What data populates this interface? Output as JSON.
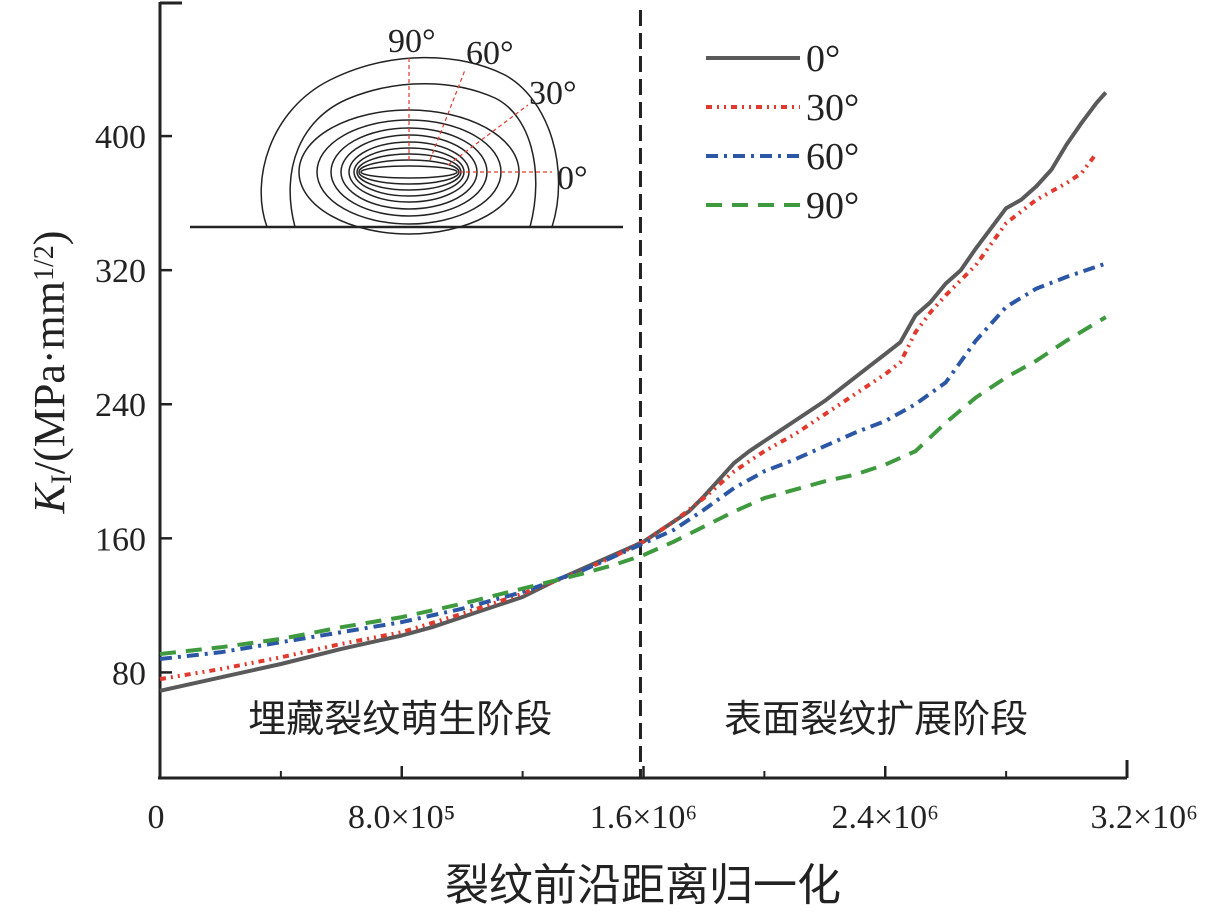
{
  "chart_data": {
    "type": "line",
    "xlabel": "裂纹前沿距离归一化",
    "ylabel_main": "K",
    "ylabel_sub": "I",
    "ylabel_rest": "/(MPa·mm",
    "ylabel_sup": "1/2",
    "ylabel_close": ")",
    "xlim": [
      0,
      3200000
    ],
    "ylim": [
      17,
      480
    ],
    "x_ticks": [
      {
        "value": 0,
        "label": "0"
      },
      {
        "value": 800000,
        "label": "8.0×10⁵"
      },
      {
        "value": 1600000,
        "label": "1.6×10⁶"
      },
      {
        "value": 2400000,
        "label": "2.4×10⁶"
      },
      {
        "value": 3200000,
        "label": "3.2×10⁶"
      }
    ],
    "x_minor_ticks": [
      400000,
      1200000,
      2000000,
      2800000
    ],
    "y_ticks": [
      {
        "value": 80,
        "label": "80"
      },
      {
        "value": 160,
        "label": "160"
      },
      {
        "value": 240,
        "label": "240"
      },
      {
        "value": 320,
        "label": "320"
      },
      {
        "value": 400,
        "label": "400"
      }
    ],
    "divider_x": 1590000,
    "regions": [
      {
        "label": "埋藏裂纹萌生阶段",
        "x": 795000,
        "y": 50
      },
      {
        "label": "表面裂纹扩展阶段",
        "x": 2370000,
        "y": 50
      }
    ],
    "legend_position": "top-right",
    "series": [
      {
        "name": "0°",
        "color": "#5a5a5a",
        "dash": "solid",
        "x": [
          0,
          200000,
          400000,
          600000,
          800000,
          900000,
          1000000,
          1100000,
          1200000,
          1300000,
          1400000,
          1500000,
          1600000,
          1700000,
          1750000,
          1800000,
          1850000,
          1900000,
          1950000,
          2000000,
          2050000,
          2100000,
          2150000,
          2200000,
          2250000,
          2300000,
          2350000,
          2400000,
          2450000,
          2500000,
          2550000,
          2600000,
          2650000,
          2700000,
          2750000,
          2800000,
          2850000,
          2900000,
          2950000,
          3000000,
          3050000,
          3100000,
          3130000
        ],
        "y": [
          69,
          77,
          85,
          94,
          102,
          107,
          113,
          119,
          125,
          134,
          142,
          150,
          158,
          170,
          176,
          185,
          195,
          205,
          212,
          218,
          224,
          230,
          236,
          242,
          249,
          256,
          263,
          270,
          277,
          293,
          301,
          312,
          320,
          333,
          345,
          357,
          362,
          370,
          380,
          395,
          408,
          420,
          426
        ]
      },
      {
        "name": "30°",
        "color": "#e03a2e",
        "dash": "6 5 2 5 2 5",
        "x": [
          0,
          200000,
          400000,
          600000,
          800000,
          1000000,
          1200000,
          1400000,
          1500000,
          1600000,
          1700000,
          1800000,
          1900000,
          2000000,
          2100000,
          2200000,
          2300000,
          2400000,
          2450000,
          2500000,
          2550000,
          2600000,
          2700000,
          2800000,
          2900000,
          3000000,
          3050000,
          3100000
        ],
        "y": [
          76,
          82,
          89,
          97,
          104,
          115,
          127,
          141,
          149,
          158,
          170,
          184,
          200,
          212,
          222,
          234,
          246,
          258,
          265,
          283,
          295,
          305,
          323,
          348,
          362,
          372,
          378,
          390
        ]
      },
      {
        "name": "60°",
        "color": "#2b57a5",
        "dash": "12 6 3 6",
        "x": [
          0,
          200000,
          400000,
          600000,
          800000,
          1000000,
          1200000,
          1400000,
          1500000,
          1600000,
          1700000,
          1800000,
          1900000,
          2000000,
          2100000,
          2200000,
          2300000,
          2400000,
          2500000,
          2600000,
          2700000,
          2800000,
          2900000,
          3000000,
          3130000
        ],
        "y": [
          88,
          92,
          98,
          104,
          110,
          118,
          128,
          141,
          149,
          157,
          165,
          177,
          190,
          200,
          207,
          215,
          223,
          230,
          240,
          253,
          278,
          298,
          309,
          316,
          324
        ]
      },
      {
        "name": "90°",
        "color": "#3f9a3f",
        "dash": "16 10",
        "x": [
          0,
          200000,
          400000,
          600000,
          800000,
          1000000,
          1200000,
          1400000,
          1500000,
          1600000,
          1700000,
          1800000,
          1900000,
          2000000,
          2100000,
          2200000,
          2300000,
          2400000,
          2500000,
          2600000,
          2700000,
          2800000,
          2900000,
          3000000,
          3130000
        ],
        "y": [
          91,
          95,
          100,
          107,
          113,
          121,
          130,
          139,
          144,
          150,
          158,
          167,
          176,
          184,
          189,
          194,
          198,
          204,
          212,
          229,
          244,
          256,
          266,
          278,
          292
        ]
      }
    ],
    "inset": {
      "description_free": true,
      "angle_labels": [
        "90°",
        "60°",
        "30°",
        "0°"
      ]
    }
  }
}
